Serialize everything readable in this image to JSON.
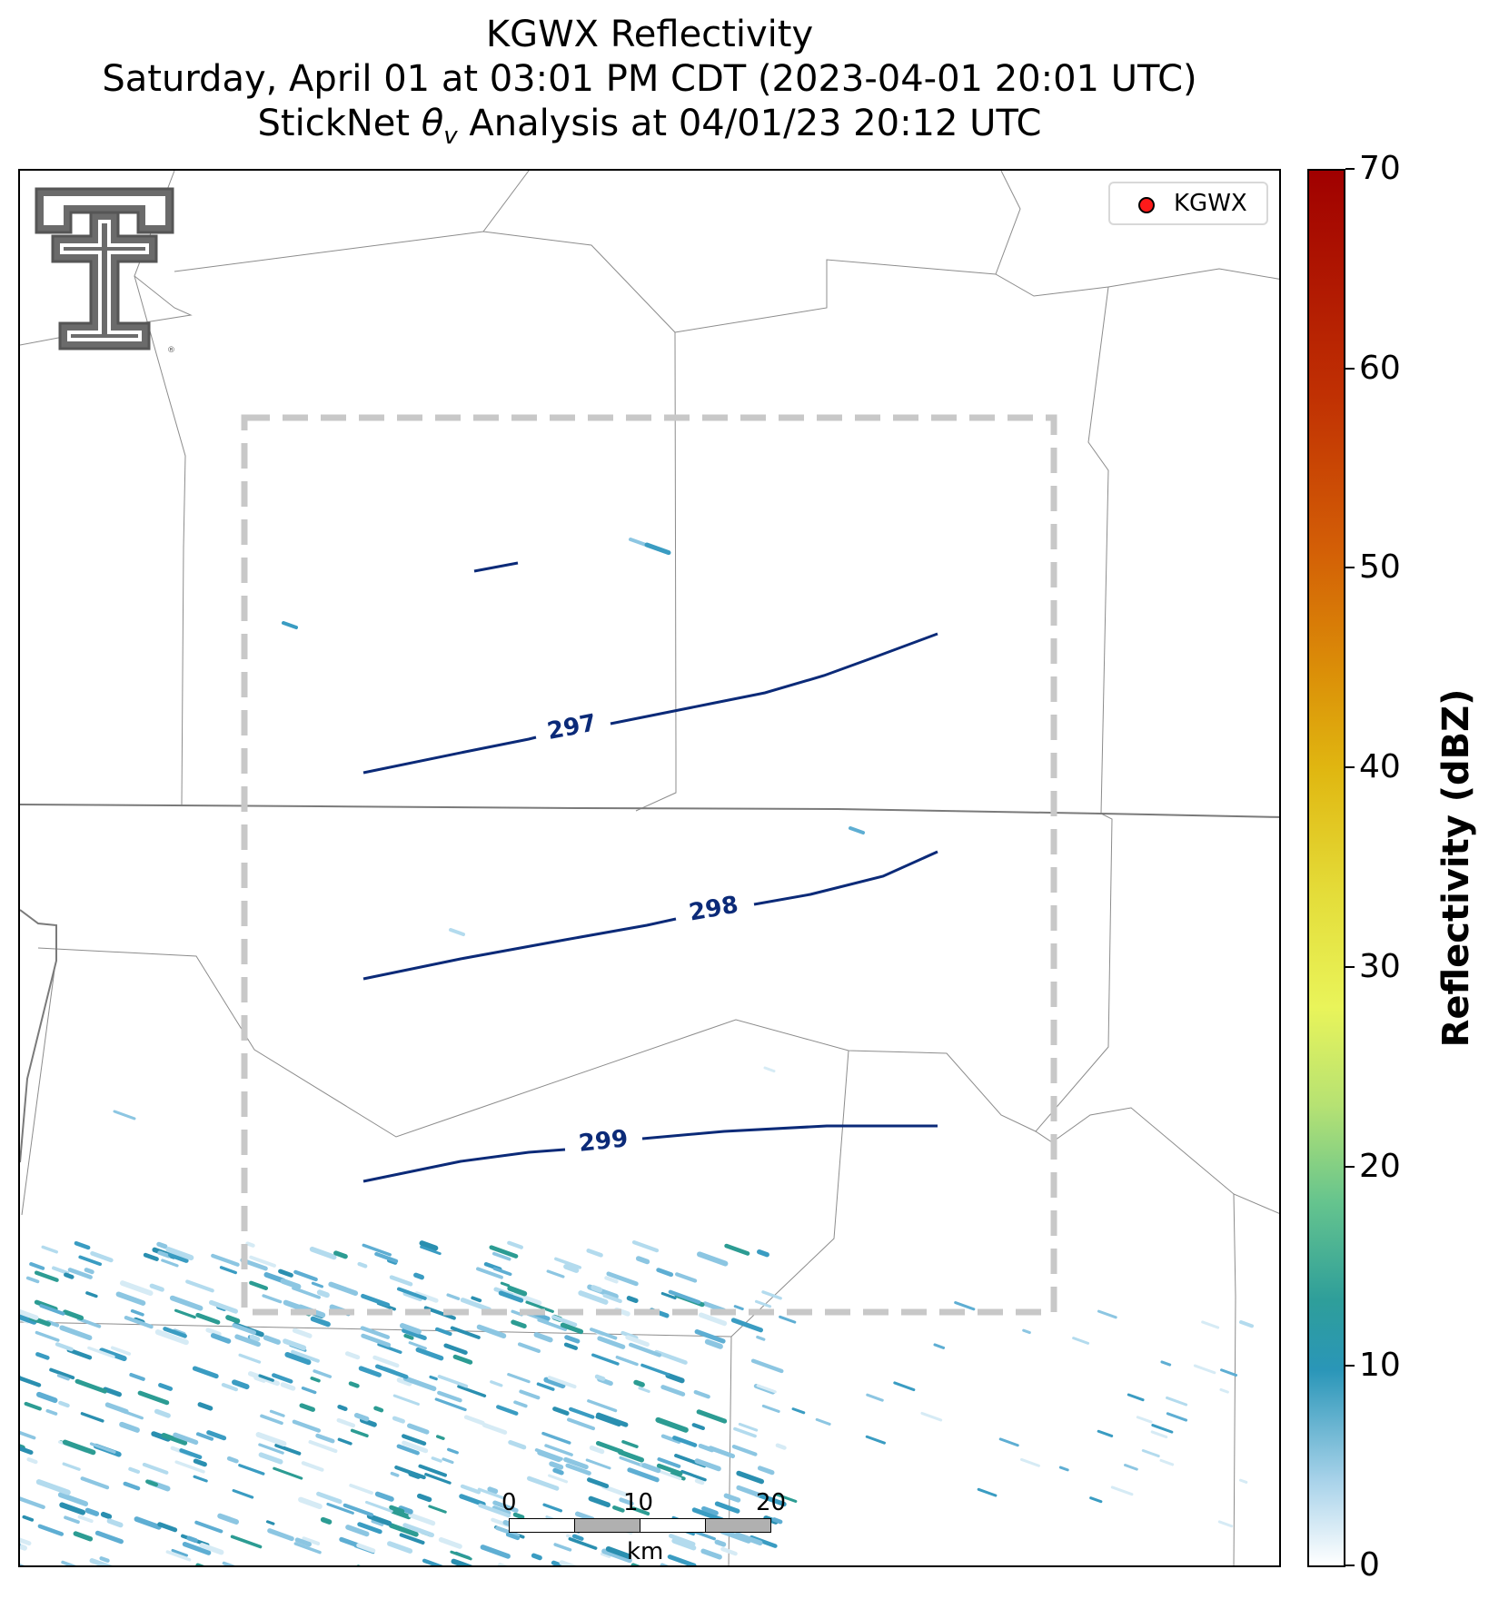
{
  "title": {
    "line1": "KGWX Reflectivity",
    "line2": "Saturday, April 01 at 03:01 PM CDT (2023-04-01 20:01 UTC)",
    "line3_prefix": "StickNet ",
    "line3_symbol": "θ",
    "line3_sub": "v",
    "line3_suffix": " Analysis at 04/01/23 20:12 UTC"
  },
  "legend": {
    "label": "KGWX",
    "marker_color": "#ff1a1a"
  },
  "contours": [
    {
      "label": "297",
      "color": "#0b2a78"
    },
    {
      "label": "298",
      "color": "#0b2a78"
    },
    {
      "label": "299",
      "color": "#0b2a78"
    }
  ],
  "scalebar": {
    "ticks": [
      "0",
      "10",
      "20"
    ],
    "unit": "km"
  },
  "colorbar": {
    "title": "Reflectivity (dBZ)",
    "ticks": [
      "0",
      "10",
      "20",
      "30",
      "40",
      "50",
      "60",
      "70"
    ],
    "min": 0,
    "max": 70,
    "colors": [
      "#ffffff",
      "#2a96b8",
      "#65c48e",
      "#e9f45a",
      "#e0b711",
      "#d35e06",
      "#c03003",
      "#a00000"
    ]
  },
  "analysis_domain": {
    "style": "dashed",
    "color": "#c8c8c8"
  },
  "logo": {
    "name": "texas-tech-double-t-logo"
  }
}
